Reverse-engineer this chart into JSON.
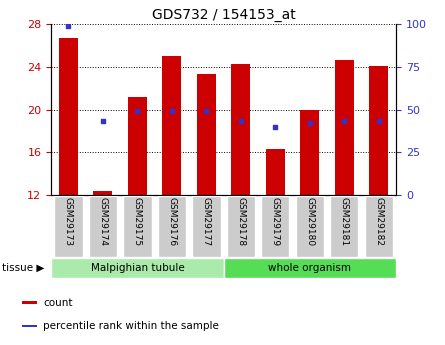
{
  "title": "GDS732 / 154153_at",
  "categories": [
    "GSM29173",
    "GSM29174",
    "GSM29175",
    "GSM29176",
    "GSM29177",
    "GSM29178",
    "GSM29179",
    "GSM29180",
    "GSM29181",
    "GSM29182"
  ],
  "bar_values": [
    26.7,
    12.4,
    21.2,
    25.0,
    23.3,
    24.3,
    16.3,
    20.0,
    24.6,
    24.1
  ],
  "percentile_ranks": [
    99,
    43,
    49,
    49,
    49,
    43,
    40,
    42,
    43,
    43
  ],
  "ylim_left": [
    12,
    28
  ],
  "ylim_right": [
    0,
    100
  ],
  "yticks_left": [
    12,
    16,
    20,
    24,
    28
  ],
  "yticks_right": [
    0,
    25,
    50,
    75,
    100
  ],
  "bar_color": "#cc0000",
  "dot_color": "#3333cc",
  "bar_width": 0.55,
  "tissue_groups": [
    {
      "label": "Malpighian tubule",
      "start": 0,
      "end": 5,
      "color": "#aaeaaa"
    },
    {
      "label": "whole organism",
      "start": 5,
      "end": 10,
      "color": "#55dd55"
    }
  ],
  "tissue_label": "tissue",
  "legend_items": [
    {
      "label": "count",
      "color": "#cc0000"
    },
    {
      "label": "percentile rank within the sample",
      "color": "#3333cc"
    }
  ],
  "left_tick_color": "#cc0000",
  "right_tick_color": "#3333cc",
  "bg_color": "#ffffff",
  "tick_label_bg": "#cccccc"
}
